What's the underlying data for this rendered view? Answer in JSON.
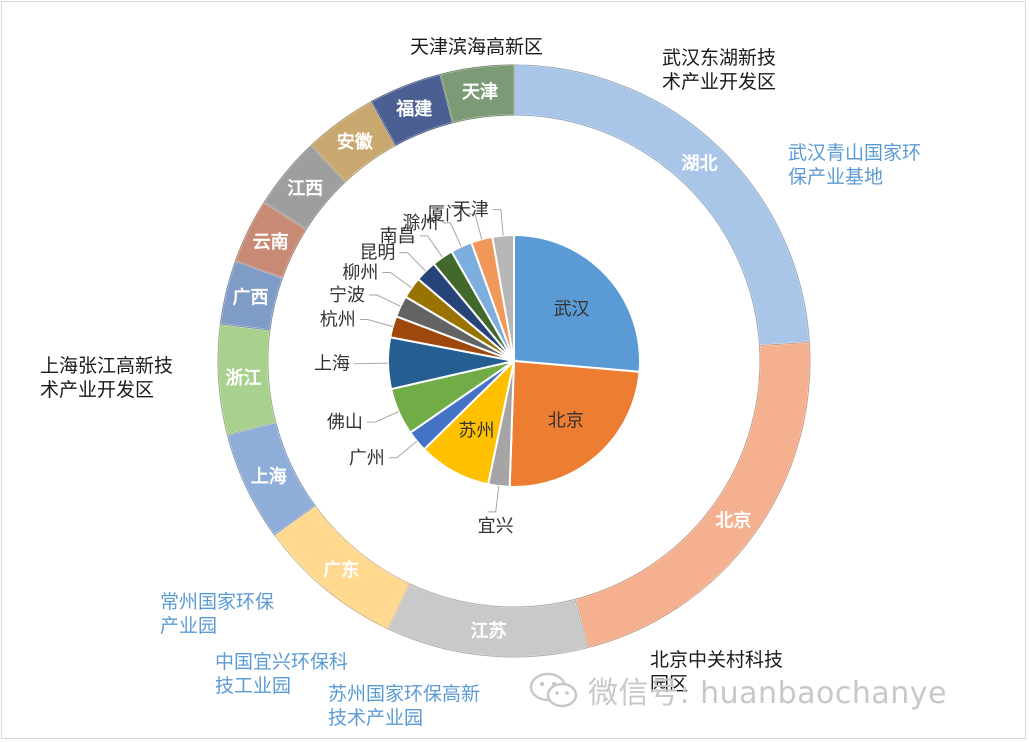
{
  "chart_data": {
    "type": "donut",
    "outer_ring": {
      "segments": [
        {
          "label": "湖北",
          "value": 24,
          "color": "#a9c6e8",
          "label_color": "#ffffff"
        },
        {
          "label": "北京",
          "value": 22,
          "color": "#f5b08f",
          "label_color": "#ffffff"
        },
        {
          "label": "江苏",
          "value": 11,
          "color": "#c9c9c9",
          "label_color": "#ffffff"
        },
        {
          "label": "广东",
          "value": 8,
          "color": "#ffd98f",
          "label_color": "#ffffff"
        },
        {
          "label": "上海",
          "value": 6,
          "color": "#8fadd9",
          "label_color": "#ffffff"
        },
        {
          "label": "浙江",
          "value": 6,
          "color": "#a9d18e",
          "label_color": "#ffffff"
        },
        {
          "label": "广西",
          "value": 3.5,
          "color": "#7f9cc7",
          "label_color": "#ffffff"
        },
        {
          "label": "云南",
          "value": 3.5,
          "color": "#c88a75",
          "label_color": "#ffffff"
        },
        {
          "label": "江西",
          "value": 4,
          "color": "#9e9e9e",
          "label_color": "#ffffff"
        },
        {
          "label": "安徽",
          "value": 4,
          "color": "#c8a86e",
          "label_color": "#ffffff"
        },
        {
          "label": "福建",
          "value": 4,
          "color": "#4c5f93",
          "label_color": "#ffffff"
        },
        {
          "label": "天津",
          "value": 4,
          "color": "#7c9a75",
          "label_color": "#ffffff"
        }
      ]
    },
    "inner_pie": {
      "segments": [
        {
          "label": "武汉",
          "value": 24,
          "color": "#5b9bd5",
          "label_color": "#333333"
        },
        {
          "label": "北京",
          "value": 22,
          "color": "#ed7d31",
          "label_color": "#333333"
        },
        {
          "label": "宜兴",
          "value": 2.5,
          "color": "#a5a5a5",
          "label_color": "#333333"
        },
        {
          "label": "苏州",
          "value": 8.5,
          "color": "#ffc000",
          "label_color": "#333333"
        },
        {
          "label": "广州",
          "value": 2.5,
          "color": "#4472c4",
          "label_color": "#333333"
        },
        {
          "label": "佛山",
          "value": 5.5,
          "color": "#70ad47",
          "label_color": "#333333"
        },
        {
          "label": "上海",
          "value": 6,
          "color": "#255e91",
          "label_color": "#333333"
        },
        {
          "label": "杭州",
          "value": 2.5,
          "color": "#9e480e",
          "label_color": "#333333"
        },
        {
          "label": "宁波",
          "value": 2.5,
          "color": "#636363",
          "label_color": "#333333"
        },
        {
          "label": "柳州",
          "value": 2.5,
          "color": "#997300",
          "label_color": "#333333"
        },
        {
          "label": "昆明",
          "value": 2.5,
          "color": "#264478",
          "label_color": "#333333"
        },
        {
          "label": "南昌",
          "value": 2.5,
          "color": "#43682b",
          "label_color": "#333333"
        },
        {
          "label": "滁州",
          "value": 2.5,
          "color": "#7cafdd",
          "label_color": "#333333"
        },
        {
          "label": "厦门",
          "value": 2.5,
          "color": "#f1975a",
          "label_color": "#333333"
        },
        {
          "label": "天津",
          "value": 2.5,
          "color": "#b7b7b7",
          "label_color": "#333333"
        }
      ]
    },
    "annotations": [
      {
        "lines": [
          "天津滨海高新区"
        ],
        "color": "dark"
      },
      {
        "lines": [
          "武汉东湖新技",
          "术产业开发区"
        ],
        "color": "dark"
      },
      {
        "lines": [
          "武汉青山国家环",
          "保产业基地"
        ],
        "color": "blue"
      },
      {
        "lines": [
          "上海张江高新技",
          "术产业开发区"
        ],
        "color": "dark"
      },
      {
        "lines": [
          "常州国家环保",
          "产业园"
        ],
        "color": "blue"
      },
      {
        "lines": [
          "中国宜兴环保科",
          "技工业园"
        ],
        "color": "blue"
      },
      {
        "lines": [
          "苏州国家环保高新",
          "技术产业园"
        ],
        "color": "blue"
      },
      {
        "lines": [
          "北京中关村科技",
          "园区"
        ],
        "color": "dark"
      }
    ]
  },
  "watermark": {
    "text": "微信号: huanbaochanye",
    "icon": "wechat-icon"
  }
}
